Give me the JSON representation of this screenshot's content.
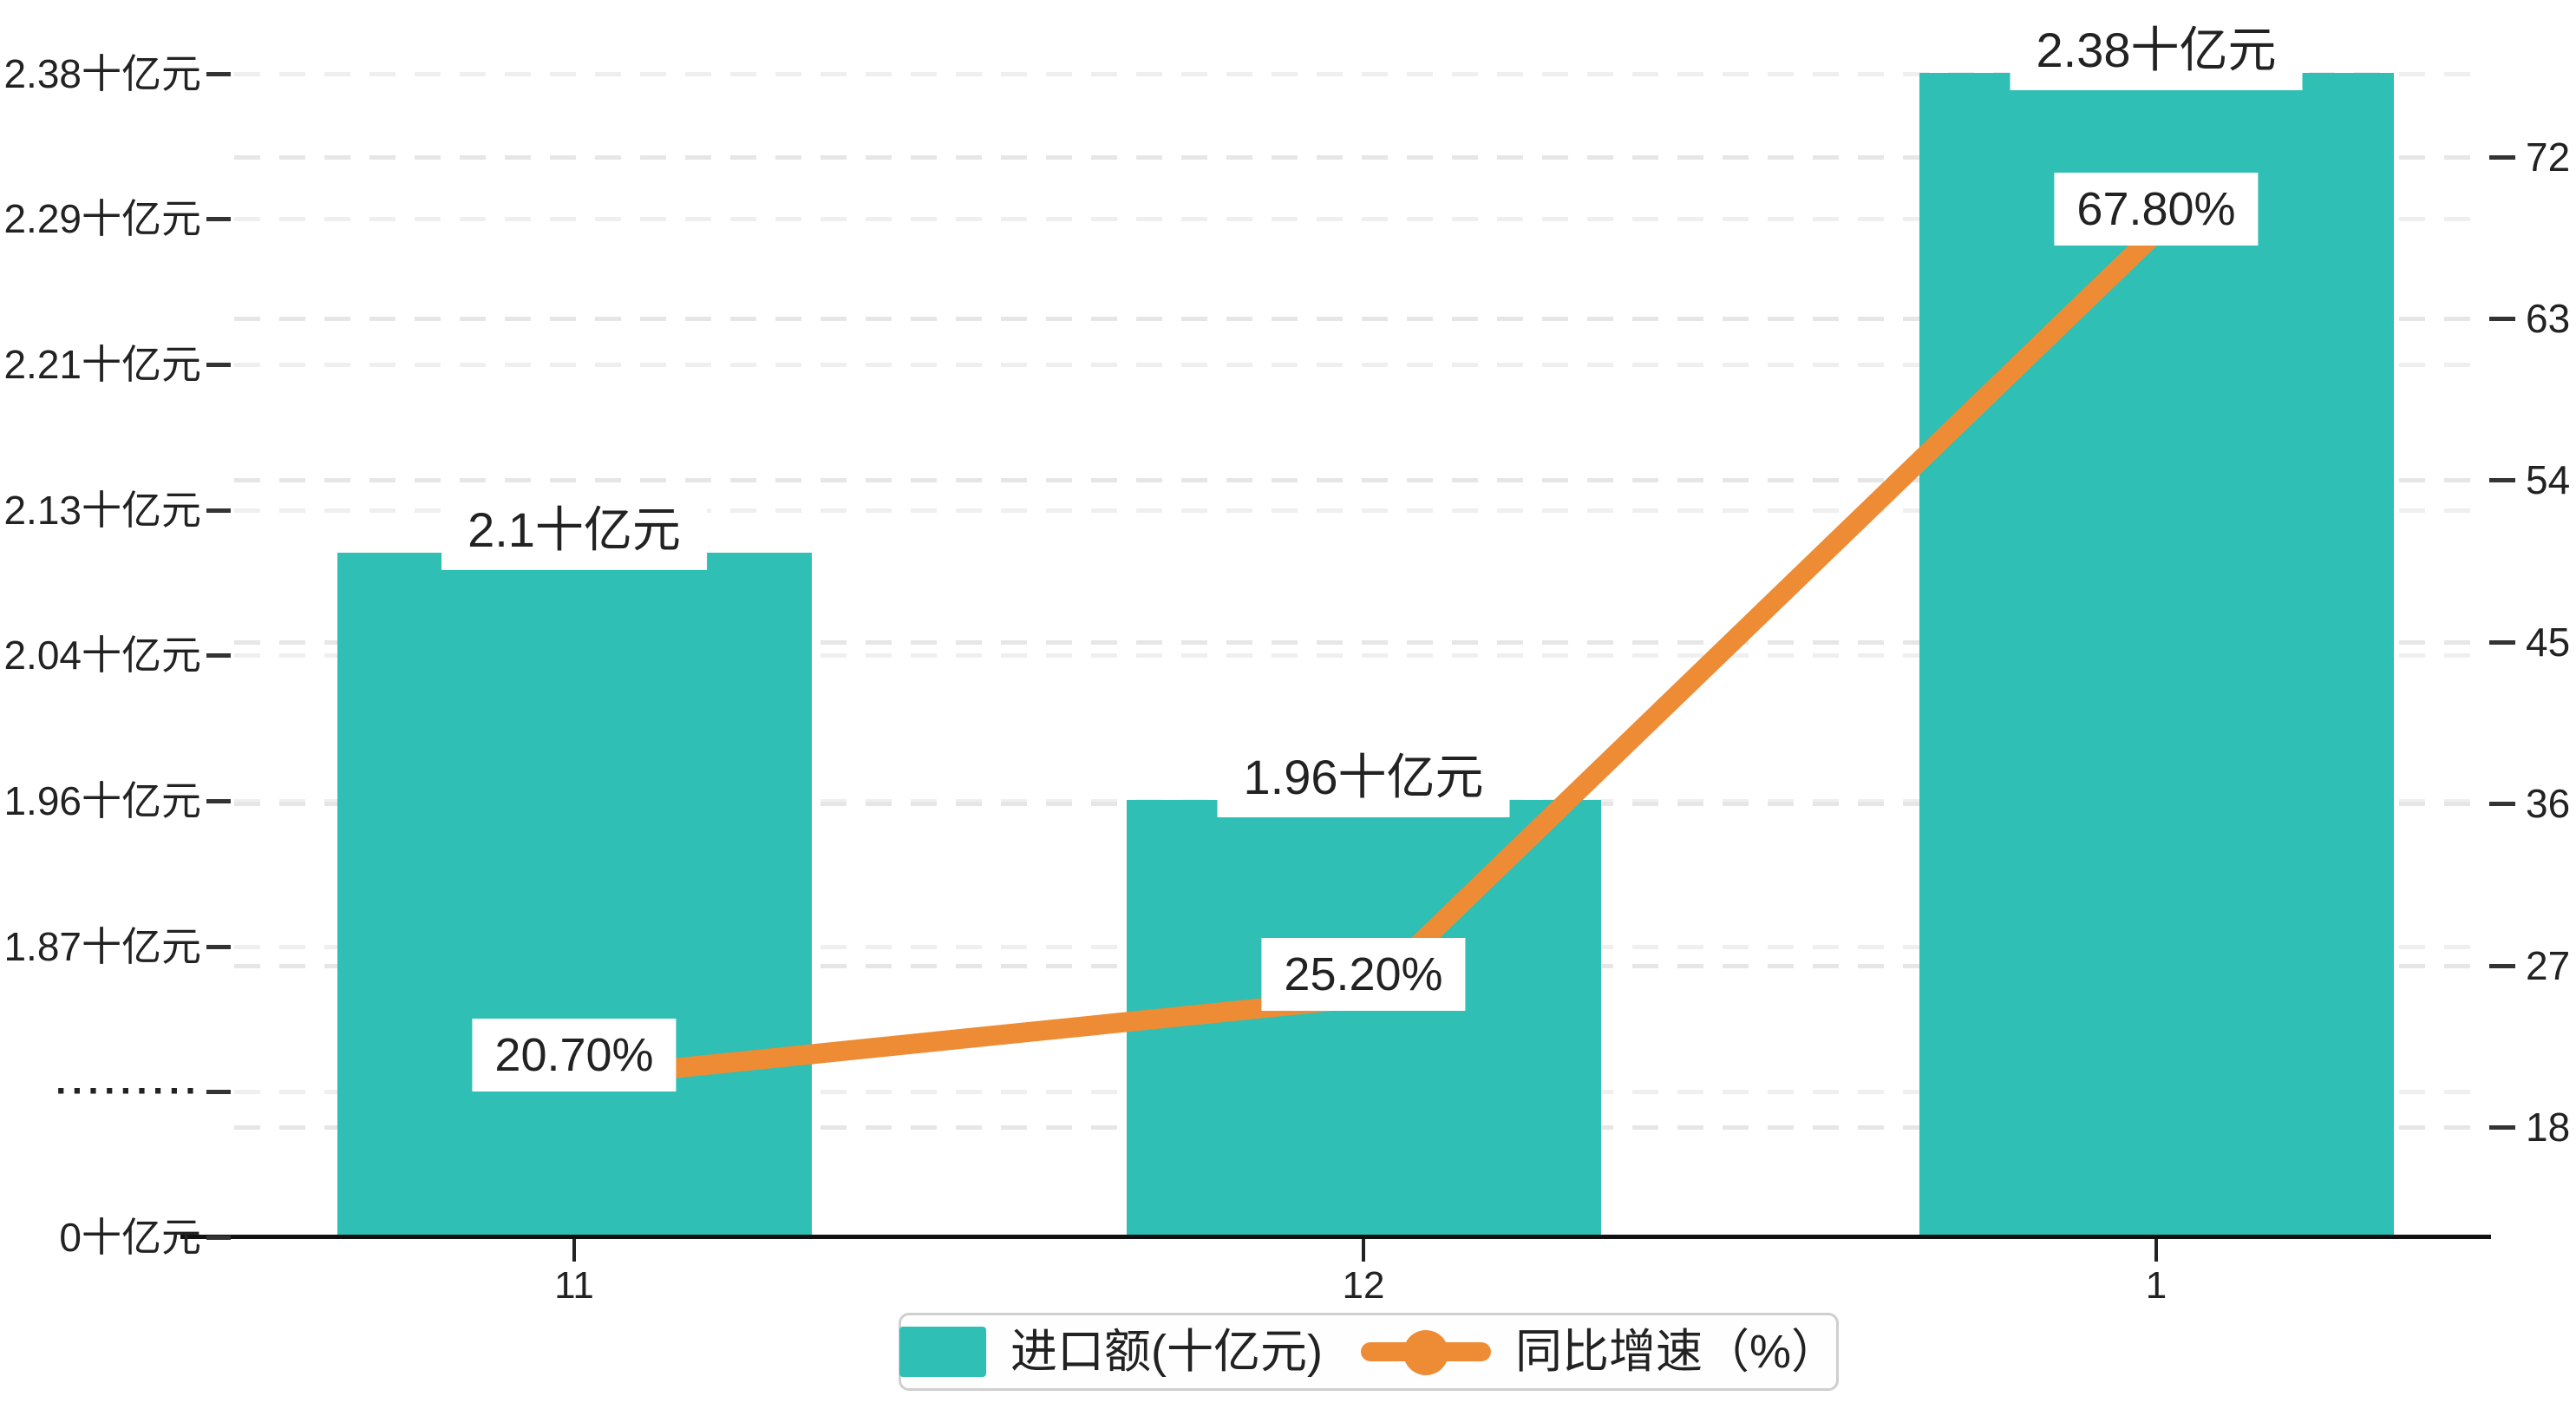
{
  "chart_data": {
    "type": "bar",
    "categories": [
      "11",
      "12",
      "1"
    ],
    "series": [
      {
        "name": "进口额(十亿元)",
        "type": "bar",
        "values": [
          2.1,
          1.96,
          2.38
        ],
        "data_labels": [
          "2.1十亿元",
          "1.96十亿元",
          "2.38十亿元"
        ],
        "color": "#2FBFB4"
      },
      {
        "name": "同比增速（%）",
        "type": "line",
        "values": [
          20.7,
          25.2,
          67.8
        ],
        "data_labels": [
          "20.70%",
          "25.20%",
          "67.80%"
        ],
        "color": "#ED8C35"
      }
    ],
    "title": "",
    "xlabel": "",
    "ylabel_left": "十亿元",
    "ylabel_right": "%",
    "left_axis": {
      "tick_labels": [
        "2.38十亿元",
        "2.29十亿元",
        "2.21十亿元",
        "2.13十亿元",
        "2.04十亿元",
        "1.96十亿元",
        "1.87十亿元",
        "·········",
        "0十亿元"
      ],
      "tick_values": [
        2.38,
        2.29,
        2.21,
        2.13,
        2.04,
        1.96,
        1.87,
        null,
        0
      ],
      "broken_axis_marker": "·········",
      "range_note": "axis breaks between 0 and 1.87"
    },
    "right_axis": {
      "tick_labels": [
        "72",
        "63",
        "54",
        "45",
        "36",
        "27",
        "18"
      ],
      "tick_values": [
        72,
        63,
        54,
        45,
        36,
        27,
        18
      ]
    },
    "grid": "dashed horizontal gridlines for both axes",
    "legend_position": "bottom-center",
    "legend": [
      {
        "label": "进口额(十亿元)",
        "icon": "bar-swatch",
        "color": "#2FBFB4"
      },
      {
        "label": "同比增速（%）",
        "icon": "line-marker",
        "color": "#ED8C35"
      }
    ],
    "colors": {
      "bar": "#2FBFB4",
      "line": "#ED8C35",
      "axis_text": "#222222",
      "axis_line": "#111111",
      "gridline_left": "#efefef",
      "gridline_right": "#e6e6e6",
      "label_background": "#ffffff"
    }
  }
}
